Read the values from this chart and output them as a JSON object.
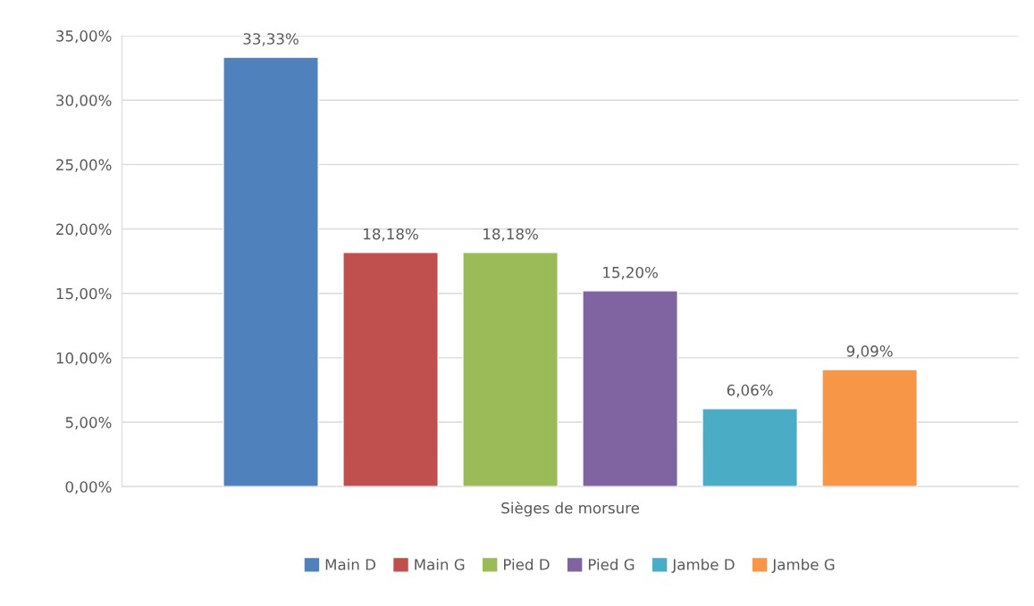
{
  "chart_data": {
    "type": "bar",
    "categories": [
      "Sièges de morsure"
    ],
    "series": [
      {
        "name": "Main D",
        "color": "#4f81bd",
        "values": [
          33.33
        ],
        "value_labels": [
          "33,33%"
        ]
      },
      {
        "name": "Main G",
        "color": "#c0504d",
        "values": [
          18.18
        ],
        "value_labels": [
          "18,18%"
        ]
      },
      {
        "name": "Pied D",
        "color": "#9bbb59",
        "values": [
          18.18
        ],
        "value_labels": [
          "18,18%"
        ]
      },
      {
        "name": "Pied G",
        "color": "#8064a2",
        "values": [
          15.2
        ],
        "value_labels": [
          "15,20%"
        ]
      },
      {
        "name": "Jambe D",
        "color": "#4bacc6",
        "values": [
          6.06
        ],
        "value_labels": [
          "6,06%"
        ]
      },
      {
        "name": "Jambe G",
        "color": "#f79646",
        "values": [
          9.09
        ],
        "value_labels": [
          "9,09%"
        ]
      }
    ],
    "ylim": [
      0,
      35
    ],
    "yticks": [
      {
        "value": 0,
        "label": "0,00%"
      },
      {
        "value": 5,
        "label": "5,00%"
      },
      {
        "value": 10,
        "label": "10,00%"
      },
      {
        "value": 15,
        "label": "15,00%"
      },
      {
        "value": 20,
        "label": "20,00%"
      },
      {
        "value": 25,
        "label": "25,00%"
      },
      {
        "value": 30,
        "label": "30,00%"
      },
      {
        "value": 35,
        "label": "35,00%"
      }
    ],
    "grid": "y",
    "legend": "bottom"
  }
}
